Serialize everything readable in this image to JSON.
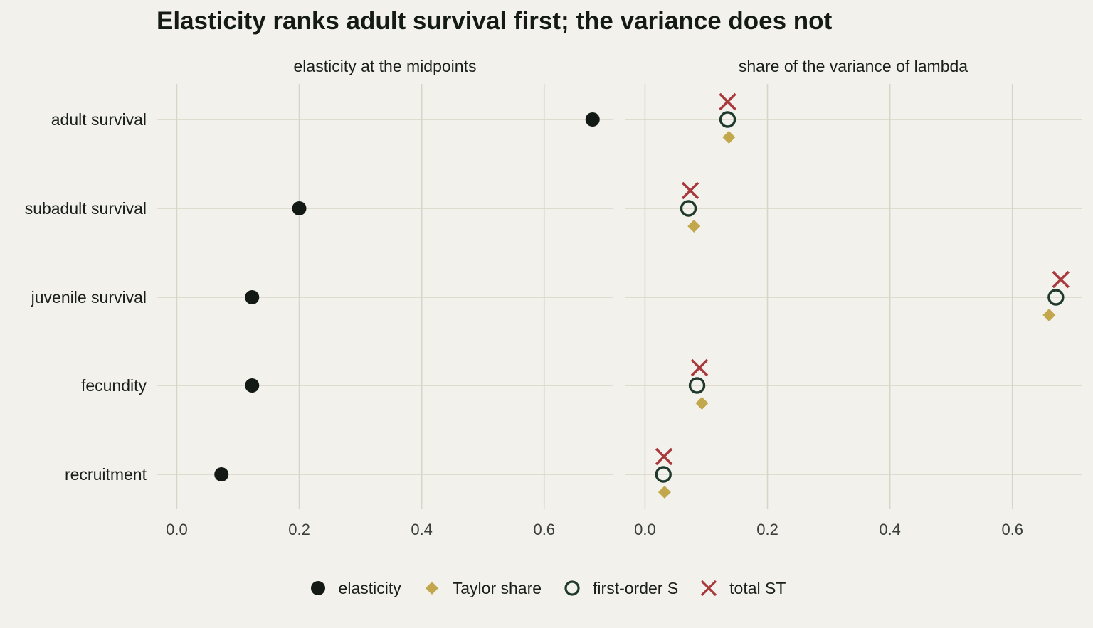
{
  "chart_data": {
    "type": "scatter",
    "title": "Elasticity ranks adult survival first; the variance does not",
    "categories": [
      "adult survival",
      "subadult survival",
      "juvenile survival",
      "fecundity",
      "recruitment"
    ],
    "x_ticks": [
      "0.0",
      "0.2",
      "0.4",
      "0.6"
    ],
    "grid": true,
    "legend_position": "bottom",
    "facets": [
      {
        "title": "elasticity at the midpoints",
        "xlim": [
          -0.033,
          0.713
        ],
        "series": [
          {
            "name": "elasticity",
            "values": [
              0.679,
              0.2,
              0.123,
              0.123,
              0.073
            ]
          }
        ]
      },
      {
        "title": "share of the variance of lambda",
        "xlim": [
          -0.033,
          0.713
        ],
        "series": [
          {
            "name": "Taylor share",
            "values": [
              0.137,
              0.08,
              0.66,
              0.093,
              0.032
            ]
          },
          {
            "name": "first-order S",
            "values": [
              0.135,
              0.071,
              0.671,
              0.085,
              0.03
            ]
          },
          {
            "name": "total ST",
            "values": [
              0.135,
              0.074,
              0.679,
              0.089,
              0.031
            ]
          }
        ]
      }
    ],
    "colors": {
      "elasticity": "#131a15",
      "Taylor share": "#c3a74c",
      "first-order S": "#1f3a2c",
      "total ST": "#a8383c",
      "grid": "#d6d6c6",
      "background": "#f2f1eb"
    },
    "legend": [
      {
        "label": "elasticity",
        "icon": "filled-circle-icon"
      },
      {
        "label": "Taylor share",
        "icon": "diamond-icon"
      },
      {
        "label": "first-order S",
        "icon": "open-circle-icon"
      },
      {
        "label": "total ST",
        "icon": "cross-icon"
      }
    ]
  }
}
